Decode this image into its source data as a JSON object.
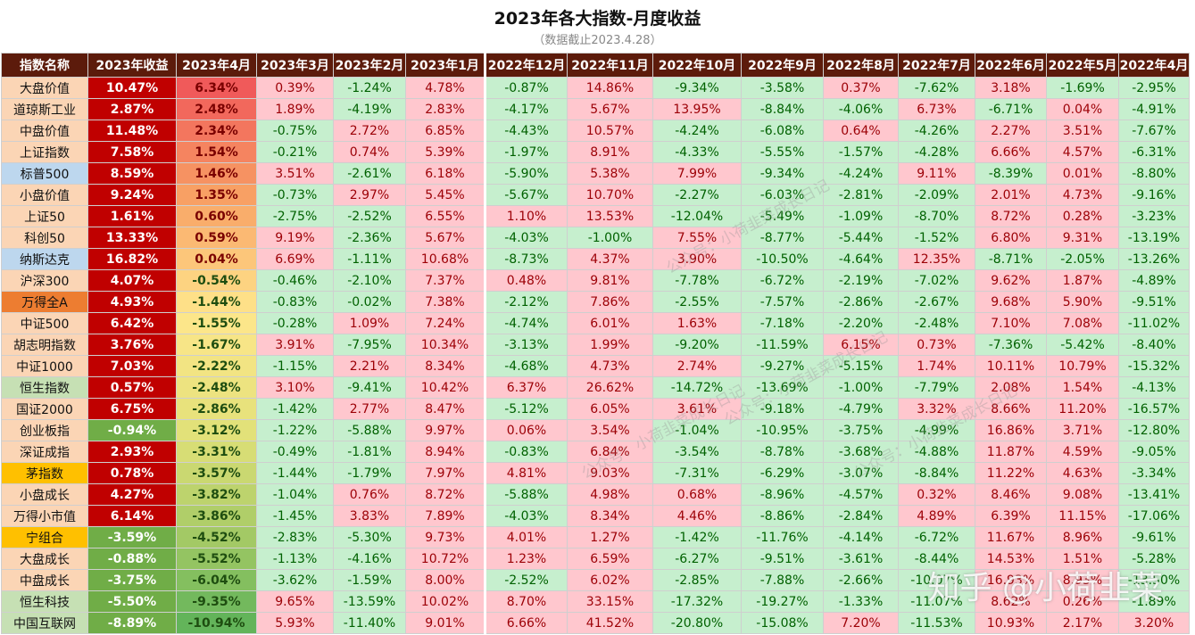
{
  "title": "2023年各大指数-月度收益",
  "subtitle": "（数据截止2023.4.28）",
  "watermark_text": "公众号：小荷韭菜成长日记",
  "brand_text": "知乎 @小荷韭菜",
  "colors": {
    "header_bg": "#5c1b0b",
    "pos_bg": "#ffc7ce",
    "neg_bg": "#c6efce",
    "pos_text": "#9c0006",
    "neg_text": "#006100",
    "ytd_pos_bg": "#c00000",
    "ytd_neg_bg": "#70ad47"
  },
  "chart_data": {
    "type": "table",
    "title": "2023年各大指数-月度收益",
    "subtitle": "（数据截止2023.4.28）",
    "columns": [
      "指数名称",
      "2023年收益",
      "2023年4月",
      "2023年3月",
      "2023年2月",
      "2023年1月",
      "2022年12月",
      "2022年11月",
      "2022年10月",
      "2022年9月",
      "2022年8月",
      "2022年7月",
      "2022年6月",
      "2022年5月",
      "2022年4月"
    ],
    "name_colors": [
      "#fbd5b5",
      "#fbd5b5",
      "#fbd5b5",
      "#fbd5b5",
      "#bdd7ee",
      "#fbd5b5",
      "#fbd5b5",
      "#fbd5b5",
      "#bdd7ee",
      "#fbd5b5",
      "#ed7d31",
      "#fbd5b5",
      "#fbd5b5",
      "#fbd5b5",
      "#c6e0b4",
      "#fbd5b5",
      "#fbd5b5",
      "#fbd5b5",
      "#ffc000",
      "#fbd5b5",
      "#fbd5b5",
      "#ffc000",
      "#fbd5b5",
      "#fbd5b5",
      "#c6e0b4",
      "#c6e0b4"
    ],
    "rows": [
      [
        "大盘价值",
        "10.47%",
        "6.34%",
        "0.39%",
        "-1.24%",
        "4.78%",
        "-0.87%",
        "14.86%",
        "-9.34%",
        "-3.58%",
        "0.37%",
        "-7.62%",
        "3.18%",
        "-1.69%",
        "-2.95%"
      ],
      [
        "道琼斯工业",
        "2.87%",
        "2.48%",
        "1.89%",
        "-4.19%",
        "2.83%",
        "-4.17%",
        "5.67%",
        "13.95%",
        "-8.84%",
        "-4.06%",
        "6.73%",
        "-6.71%",
        "0.04%",
        "-4.91%"
      ],
      [
        "中盘价值",
        "11.48%",
        "2.34%",
        "-0.75%",
        "2.72%",
        "6.85%",
        "-4.43%",
        "10.57%",
        "-4.24%",
        "-6.08%",
        "0.64%",
        "-4.26%",
        "2.27%",
        "3.51%",
        "-7.67%"
      ],
      [
        "上证指数",
        "7.58%",
        "1.54%",
        "-0.21%",
        "0.74%",
        "5.39%",
        "-1.97%",
        "8.91%",
        "-4.33%",
        "-5.55%",
        "-1.57%",
        "-4.28%",
        "6.66%",
        "4.57%",
        "-6.31%"
      ],
      [
        "标普500",
        "8.59%",
        "1.46%",
        "3.51%",
        "-2.61%",
        "6.18%",
        "-5.90%",
        "5.38%",
        "7.99%",
        "-9.34%",
        "-4.24%",
        "9.11%",
        "-8.39%",
        "0.01%",
        "-8.80%"
      ],
      [
        "小盘价值",
        "9.24%",
        "1.35%",
        "-0.73%",
        "2.97%",
        "5.45%",
        "-5.67%",
        "10.70%",
        "-2.27%",
        "-6.03%",
        "-2.81%",
        "-2.09%",
        "2.01%",
        "4.73%",
        "-9.16%"
      ],
      [
        "上证50",
        "1.61%",
        "0.60%",
        "-2.75%",
        "-2.52%",
        "6.55%",
        "1.10%",
        "13.53%",
        "-12.04%",
        "-5.49%",
        "-1.09%",
        "-8.70%",
        "8.72%",
        "0.28%",
        "-3.23%"
      ],
      [
        "科创50",
        "13.33%",
        "0.59%",
        "9.19%",
        "-2.36%",
        "5.67%",
        "-4.03%",
        "-1.00%",
        "7.55%",
        "-8.77%",
        "-5.44%",
        "-1.52%",
        "6.80%",
        "9.31%",
        "-13.19%"
      ],
      [
        "纳斯达克",
        "16.82%",
        "0.04%",
        "6.69%",
        "-1.11%",
        "10.68%",
        "-8.73%",
        "4.37%",
        "3.90%",
        "-10.50%",
        "-4.64%",
        "12.35%",
        "-8.71%",
        "-2.05%",
        "-13.26%"
      ],
      [
        "沪深300",
        "4.07%",
        "-0.54%",
        "-0.46%",
        "-2.10%",
        "7.37%",
        "0.48%",
        "9.81%",
        "-7.78%",
        "-6.72%",
        "-2.19%",
        "-7.02%",
        "9.62%",
        "1.87%",
        "-4.89%"
      ],
      [
        "万得全A",
        "4.93%",
        "-1.44%",
        "-0.83%",
        "-0.02%",
        "7.38%",
        "-2.12%",
        "7.86%",
        "-2.55%",
        "-7.57%",
        "-2.86%",
        "-2.67%",
        "9.68%",
        "5.90%",
        "-9.51%"
      ],
      [
        "中证500",
        "6.42%",
        "-1.55%",
        "-0.28%",
        "1.09%",
        "7.24%",
        "-4.74%",
        "6.01%",
        "1.63%",
        "-7.18%",
        "-2.20%",
        "-2.48%",
        "7.10%",
        "7.08%",
        "-11.02%"
      ],
      [
        "胡志明指数",
        "3.76%",
        "-1.67%",
        "3.91%",
        "-7.95%",
        "10.34%",
        "-3.13%",
        "1.99%",
        "-9.20%",
        "-11.59%",
        "6.15%",
        "0.73%",
        "-7.36%",
        "-5.42%",
        "-8.40%"
      ],
      [
        "中证1000",
        "7.03%",
        "-2.22%",
        "-1.15%",
        "2.21%",
        "8.34%",
        "-4.68%",
        "4.73%",
        "2.74%",
        "-9.27%",
        "-5.15%",
        "1.74%",
        "10.11%",
        "10.79%",
        "-15.32%"
      ],
      [
        "恒生指数",
        "0.57%",
        "-2.48%",
        "3.10%",
        "-9.41%",
        "10.42%",
        "6.37%",
        "26.62%",
        "-14.72%",
        "-13.69%",
        "-1.00%",
        "-7.79%",
        "2.08%",
        "1.54%",
        "-4.13%"
      ],
      [
        "国证2000",
        "6.75%",
        "-2.86%",
        "-1.42%",
        "2.77%",
        "8.47%",
        "-5.12%",
        "6.05%",
        "3.61%",
        "-9.18%",
        "-4.79%",
        "3.32%",
        "8.66%",
        "11.20%",
        "-16.57%"
      ],
      [
        "创业板指",
        "-0.94%",
        "-3.12%",
        "-1.22%",
        "-5.88%",
        "9.97%",
        "0.06%",
        "3.54%",
        "-1.04%",
        "-10.95%",
        "-3.75%",
        "-4.99%",
        "16.86%",
        "3.71%",
        "-12.80%"
      ],
      [
        "深证成指",
        "2.93%",
        "-3.31%",
        "-0.49%",
        "-1.81%",
        "8.94%",
        "-0.83%",
        "6.84%",
        "-3.54%",
        "-8.78%",
        "-3.68%",
        "-4.88%",
        "11.87%",
        "4.59%",
        "-9.05%"
      ],
      [
        "茅指数",
        "0.78%",
        "-3.57%",
        "-1.44%",
        "-1.79%",
        "7.97%",
        "4.81%",
        "9.03%",
        "-7.31%",
        "-6.29%",
        "-3.07%",
        "-8.84%",
        "11.22%",
        "4.63%",
        "-3.34%"
      ],
      [
        "小盘成长",
        "4.27%",
        "-3.82%",
        "-1.04%",
        "0.76%",
        "8.72%",
        "-5.88%",
        "4.98%",
        "0.68%",
        "-8.96%",
        "-4.57%",
        "0.32%",
        "8.46%",
        "9.08%",
        "-13.41%"
      ],
      [
        "万得小市值",
        "6.14%",
        "-3.86%",
        "-1.45%",
        "3.83%",
        "7.89%",
        "-4.03%",
        "8.34%",
        "4.46%",
        "-8.86%",
        "-2.84%",
        "4.89%",
        "6.39%",
        "11.15%",
        "-17.06%"
      ],
      [
        "宁组合",
        "-3.59%",
        "-4.52%",
        "-2.83%",
        "-5.30%",
        "9.73%",
        "4.01%",
        "1.27%",
        "-1.42%",
        "-11.76%",
        "-4.14%",
        "-6.72%",
        "11.67%",
        "8.96%",
        "-9.61%"
      ],
      [
        "大盘成长",
        "-0.88%",
        "-5.52%",
        "-1.13%",
        "-4.16%",
        "10.72%",
        "1.23%",
        "6.59%",
        "-6.27%",
        "-9.51%",
        "-3.61%",
        "-8.44%",
        "14.53%",
        "1.51%",
        "-5.28%"
      ],
      [
        "中盘成长",
        "-3.75%",
        "-6.04%",
        "-3.62%",
        "-1.59%",
        "8.00%",
        "-2.52%",
        "6.02%",
        "-2.85%",
        "-7.88%",
        "-2.66%",
        "-10.07%",
        "16.93%",
        "8.93%",
        "-13.50%"
      ],
      [
        "恒生科技",
        "-5.50%",
        "-9.35%",
        "9.65%",
        "-13.59%",
        "10.02%",
        "8.70%",
        "33.15%",
        "-17.32%",
        "-19.27%",
        "-1.33%",
        "-11.07%",
        "8.62%",
        "0.26%",
        "-1.89%"
      ],
      [
        "中国互联网",
        "-8.89%",
        "-10.94%",
        "5.93%",
        "-11.40%",
        "9.01%",
        "6.66%",
        "41.52%",
        "-20.80%",
        "-15.08%",
        "7.20%",
        "-11.53%",
        "10.93%",
        "2.17%",
        "3.20%"
      ]
    ]
  }
}
